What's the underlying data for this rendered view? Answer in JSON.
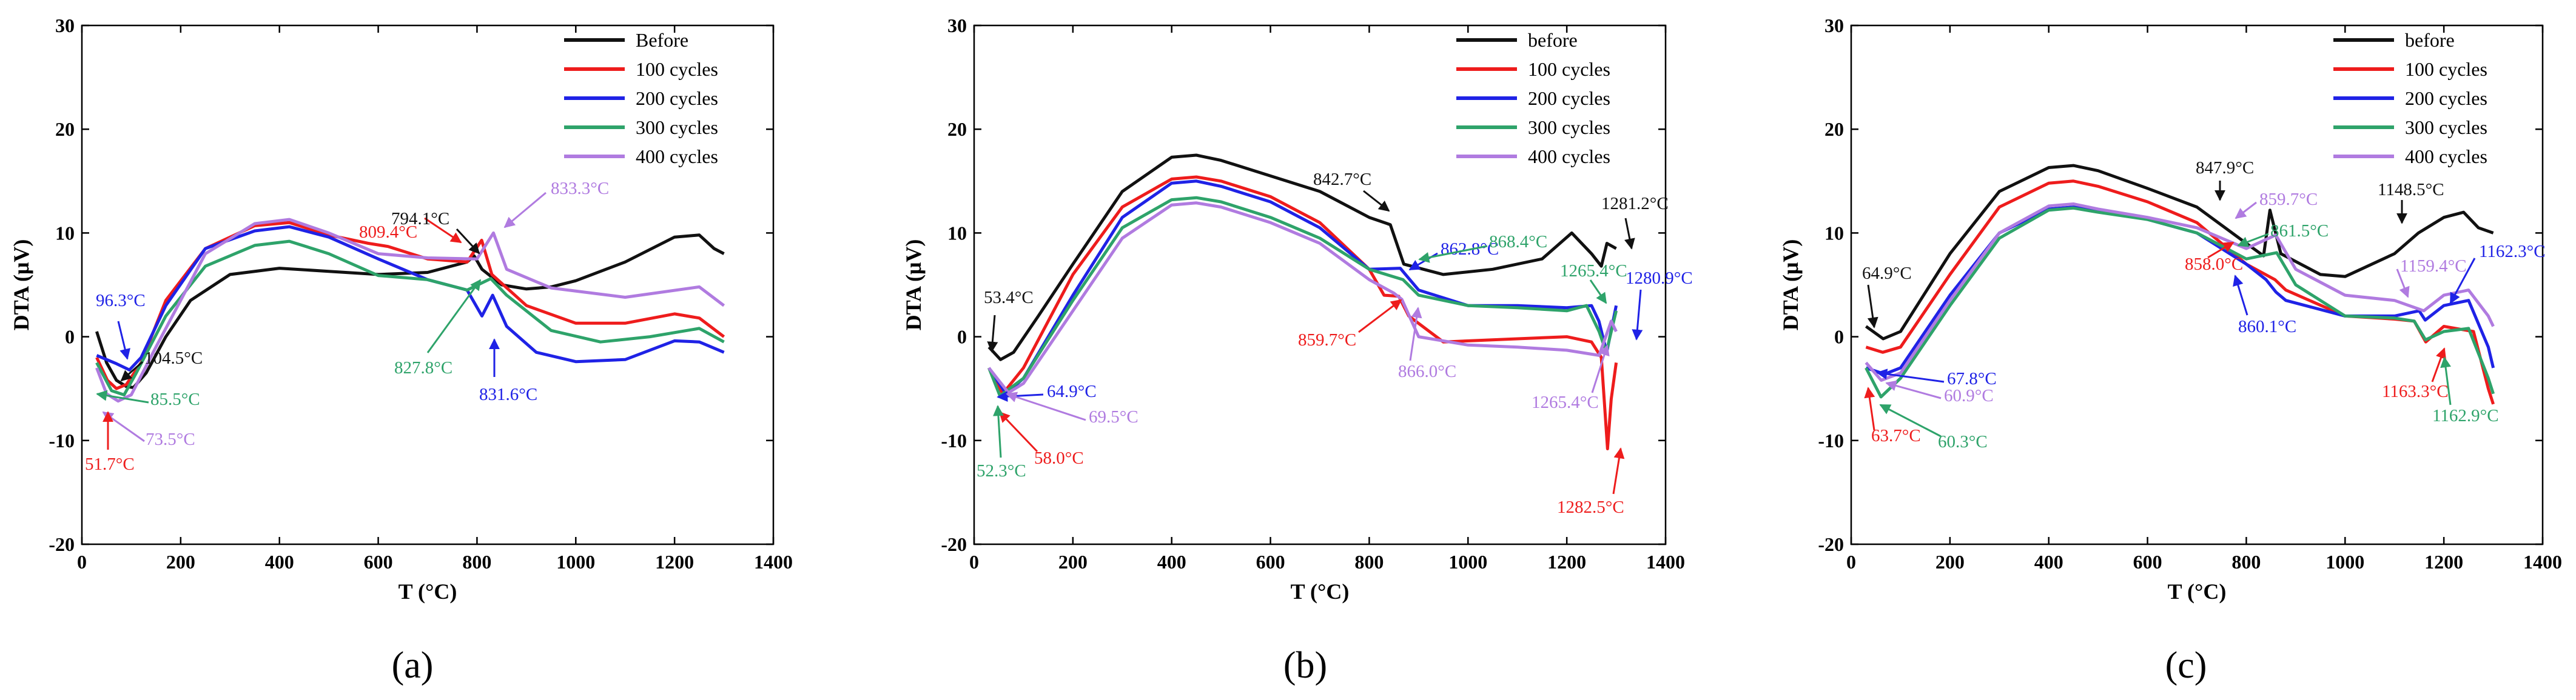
{
  "figure": {
    "panel_labels": [
      "(a)",
      "(b)",
      "(c)"
    ]
  },
  "colors": {
    "black": "#111111",
    "red": "#ee1c1c",
    "blue": "#1f22e6",
    "green": "#2ea36a",
    "purple": "#b07be0"
  },
  "chart_data": [
    {
      "type": "line",
      "title": "",
      "panel": "(a)",
      "xlabel": "T (°C)",
      "ylabel": "DTA (μV)",
      "xlim": [
        0,
        1400
      ],
      "ylim": [
        -20,
        30
      ],
      "xticks": [
        0,
        200,
        400,
        600,
        800,
        1000,
        1200,
        1400
      ],
      "yticks": [
        -20,
        -10,
        0,
        10,
        20,
        30
      ],
      "legend": "top-right",
      "series": [
        {
          "name": "Before",
          "color": "black",
          "x": [
            30,
            50,
            70,
            90,
            104.5,
            130,
            170,
            220,
            300,
            400,
            500,
            600,
            700,
            780,
            794.1,
            810,
            850,
            900,
            950,
            1000,
            1100,
            1200,
            1250,
            1280,
            1300
          ],
          "y": [
            0.5,
            -2.5,
            -4.2,
            -4.8,
            -4.9,
            -3.5,
            0,
            3.5,
            6,
            6.6,
            6.3,
            6,
            6.2,
            7.2,
            7.8,
            6.5,
            5,
            4.6,
            4.8,
            5.4,
            7.2,
            9.6,
            9.8,
            8.5,
            8
          ]
        },
        {
          "name": "100 cycles",
          "color": "red",
          "x": [
            30,
            51.7,
            70,
            90,
            120,
            170,
            250,
            350,
            420,
            500,
            580,
            620,
            700,
            780,
            809.4,
            830,
            900,
            1000,
            1100,
            1200,
            1250,
            1300
          ],
          "y": [
            -2,
            -4.2,
            -5,
            -4.6,
            -2.5,
            3.5,
            8.5,
            10.7,
            11,
            9.8,
            9,
            8.7,
            7.5,
            7.2,
            9.3,
            6,
            3,
            1.3,
            1.3,
            2.2,
            1.8,
            0
          ]
        },
        {
          "name": "200 cycles",
          "color": "blue",
          "x": [
            30,
            70,
            96.3,
            120,
            170,
            250,
            350,
            420,
            500,
            600,
            700,
            780,
            810,
            831.6,
            860,
            920,
            1000,
            1100,
            1200,
            1250,
            1300
          ],
          "y": [
            -1.8,
            -2.6,
            -3.2,
            -2,
            3,
            8.5,
            10.2,
            10.6,
            9.6,
            7.5,
            5.5,
            4.5,
            2,
            4,
            1,
            -1.5,
            -2.4,
            -2.2,
            -0.4,
            -0.5,
            -1.5
          ]
        },
        {
          "name": "300 cycles",
          "color": "green",
          "x": [
            30,
            60,
            85.5,
            110,
            170,
            250,
            350,
            420,
            500,
            600,
            700,
            780,
            827.8,
            860,
            950,
            1050,
            1150,
            1250,
            1300
          ],
          "y": [
            -2.5,
            -5.2,
            -5.6,
            -3.5,
            2,
            6.8,
            8.8,
            9.2,
            8,
            5.9,
            5.5,
            4.5,
            5.6,
            4,
            0.6,
            -0.5,
            0,
            0.8,
            -0.5
          ]
        },
        {
          "name": "400 cycles",
          "color": "purple",
          "x": [
            30,
            50,
            73.5,
            100,
            150,
            250,
            350,
            420,
            500,
            600,
            700,
            800,
            833.3,
            860,
            950,
            1100,
            1250,
            1300
          ],
          "y": [
            -3,
            -5.5,
            -6.2,
            -5.6,
            -1,
            8,
            10.9,
            11.3,
            10,
            8,
            7.6,
            7.5,
            10,
            6.5,
            4.7,
            3.8,
            4.8,
            3
          ]
        }
      ],
      "annotations": [
        {
          "text": "96.3°C",
          "color": "blue",
          "x": 96.3
        },
        {
          "text": "104.5°C",
          "color": "black",
          "x": 104.5
        },
        {
          "text": "85.5°C",
          "color": "green",
          "x": 85.5
        },
        {
          "text": "73.5°C",
          "color": "purple",
          "x": 73.5
        },
        {
          "text": "51.7°C",
          "color": "red",
          "x": 51.7
        },
        {
          "text": "809.4°C",
          "color": "red",
          "x": 809.4
        },
        {
          "text": "833.3°C",
          "color": "purple",
          "x": 833.3
        },
        {
          "text": "794.1°C",
          "color": "black",
          "x": 794.1
        },
        {
          "text": "827.8°C",
          "color": "green",
          "x": 827.8
        },
        {
          "text": "831.6°C",
          "color": "blue",
          "x": 831.6
        }
      ]
    },
    {
      "type": "line",
      "title": "",
      "panel": "(b)",
      "xlabel": "T (°C)",
      "ylabel": "DTA (μV)",
      "xlim": [
        0,
        1400
      ],
      "ylim": [
        -20,
        30
      ],
      "xticks": [
        0,
        200,
        400,
        600,
        800,
        1000,
        1200,
        1400
      ],
      "yticks": [
        -20,
        -10,
        0,
        10,
        20,
        30
      ],
      "legend": "top-right",
      "series": [
        {
          "name": "before",
          "color": "black",
          "x": [
            30,
            53.4,
            80,
            130,
            200,
            300,
            400,
            450,
            500,
            600,
            700,
            800,
            842.7,
            870,
            950,
            1050,
            1150,
            1210,
            1250,
            1270,
            1281.2,
            1300
          ],
          "y": [
            -1,
            -2.2,
            -1.5,
            2,
            7,
            14,
            17.3,
            17.5,
            17,
            15.5,
            14,
            11.5,
            10.8,
            7,
            6,
            6.5,
            7.5,
            10,
            8,
            6.8,
            9,
            8.5
          ]
        },
        {
          "name": "100 cycles",
          "color": "red",
          "x": [
            30,
            58,
            100,
            200,
            300,
            400,
            450,
            500,
            600,
            700,
            800,
            830,
            859.7,
            880,
            950,
            1100,
            1200,
            1250,
            1270,
            1282.5,
            1290,
            1300
          ],
          "y": [
            -3,
            -5.5,
            -3,
            6,
            12.5,
            15.2,
            15.4,
            15,
            13.5,
            11,
            6.5,
            4,
            3.9,
            2,
            -0.5,
            -0.2,
            0,
            -0.5,
            -2,
            -10.8,
            -6,
            -2.5
          ]
        },
        {
          "name": "200 cycles",
          "color": "blue",
          "x": [
            30,
            64.9,
            100,
            200,
            300,
            400,
            450,
            500,
            600,
            700,
            800,
            862.8,
            900,
            1000,
            1100,
            1200,
            1250,
            1265,
            1280.9,
            1300
          ],
          "y": [
            -3,
            -5.5,
            -4,
            4,
            11.5,
            14.8,
            15,
            14.5,
            13,
            10.5,
            6.5,
            6.6,
            4.5,
            3,
            3,
            2.8,
            3,
            1.5,
            -1.5,
            3
          ]
        },
        {
          "name": "300 cycles",
          "color": "green",
          "x": [
            30,
            52.3,
            100,
            200,
            300,
            400,
            450,
            500,
            600,
            700,
            800,
            868.4,
            900,
            1000,
            1100,
            1200,
            1240,
            1265.4,
            1280,
            1300
          ],
          "y": [
            -3,
            -5.7,
            -4,
            3.5,
            10.5,
            13.2,
            13.4,
            13,
            11.5,
            9.5,
            6.5,
            5.5,
            4,
            3,
            2.8,
            2.5,
            3,
            0.5,
            -1.5,
            2.5
          ]
        },
        {
          "name": "400 cycles",
          "color": "purple",
          "x": [
            30,
            69.5,
            100,
            200,
            300,
            400,
            450,
            500,
            600,
            700,
            800,
            850,
            866,
            900,
            1000,
            1100,
            1200,
            1265.4,
            1290,
            1300
          ],
          "y": [
            -3,
            -5.4,
            -4.5,
            2.5,
            9.5,
            12.7,
            12.9,
            12.5,
            11,
            9,
            5.5,
            4.2,
            3.6,
            0,
            -0.8,
            -1,
            -1.3,
            -1.8,
            1.5,
            0.5
          ]
        }
      ],
      "annotations": [
        {
          "text": "53.4°C",
          "color": "black",
          "x": 53.4
        },
        {
          "text": "64.9°C",
          "color": "blue",
          "x": 64.9
        },
        {
          "text": "69.5°C",
          "color": "purple",
          "x": 69.5
        },
        {
          "text": "58.0°C",
          "color": "red",
          "x": 58.0
        },
        {
          "text": "52.3°C",
          "color": "green",
          "x": 52.3
        },
        {
          "text": "842.7°C",
          "color": "black",
          "x": 842.7
        },
        {
          "text": "862.8°C",
          "color": "blue",
          "x": 862.8
        },
        {
          "text": "868.4°C",
          "color": "green",
          "x": 868.4
        },
        {
          "text": "859.7°C",
          "color": "red",
          "x": 859.7
        },
        {
          "text": "866.0°C",
          "color": "purple",
          "x": 866.0
        },
        {
          "text": "1281.2°C",
          "color": "black",
          "x": 1281.2
        },
        {
          "text": "1265.4°C",
          "color": "green",
          "x": 1265.4
        },
        {
          "text": "1280.9°C",
          "color": "blue",
          "x": 1280.9
        },
        {
          "text": "1265.4°C",
          "color": "purple",
          "x": 1265.4
        },
        {
          "text": "1282.5°C",
          "color": "red",
          "x": 1282.5
        }
      ]
    },
    {
      "type": "line",
      "title": "",
      "panel": "(c)",
      "xlabel": "T (°C)",
      "ylabel": "DTA (μV)",
      "xlim": [
        0,
        1400
      ],
      "ylim": [
        -20,
        30
      ],
      "xticks": [
        0,
        200,
        400,
        600,
        800,
        1000,
        1200,
        1400
      ],
      "yticks": [
        -20,
        -10,
        0,
        10,
        20,
        30
      ],
      "legend": "top-right",
      "series": [
        {
          "name": "before",
          "color": "black",
          "x": [
            30,
            64.9,
            100,
            200,
            300,
            400,
            450,
            500,
            600,
            700,
            800,
            835,
            847.9,
            870,
            950,
            1000,
            1100,
            1148.5,
            1200,
            1240,
            1270,
            1300
          ],
          "y": [
            1,
            -0.2,
            0.5,
            8,
            14,
            16.3,
            16.5,
            16,
            14.3,
            12.5,
            9,
            7.8,
            12.2,
            8,
            6,
            5.8,
            8,
            10,
            11.5,
            12,
            10.5,
            10
          ]
        },
        {
          "name": "100 cycles",
          "color": "red",
          "x": [
            30,
            63.7,
            100,
            200,
            300,
            400,
            450,
            500,
            600,
            700,
            800,
            858,
            880,
            1000,
            1100,
            1140,
            1163.3,
            1200,
            1260,
            1290,
            1300
          ],
          "y": [
            -1,
            -1.5,
            -1,
            6,
            12.5,
            14.8,
            15,
            14.5,
            13,
            11,
            7,
            5.5,
            4.5,
            2,
            1.7,
            1.5,
            -0.5,
            1,
            0.5,
            -5,
            -6.5
          ]
        },
        {
          "name": "200 cycles",
          "color": "blue",
          "x": [
            30,
            67.8,
            100,
            200,
            300,
            400,
            450,
            500,
            600,
            700,
            800,
            840,
            860.1,
            880,
            1000,
            1100,
            1150,
            1162.3,
            1200,
            1250,
            1290,
            1300
          ],
          "y": [
            -3,
            -3.6,
            -3,
            4,
            10,
            12.3,
            12.5,
            12.2,
            11.3,
            10,
            7,
            5.5,
            4.3,
            3.5,
            2,
            2,
            2.5,
            1.6,
            3,
            3.5,
            -1,
            -3
          ]
        },
        {
          "name": "300 cycles",
          "color": "green",
          "x": [
            30,
            60.3,
            100,
            200,
            300,
            400,
            450,
            500,
            600,
            700,
            800,
            861.5,
            900,
            1000,
            1100,
            1140,
            1162.9,
            1200,
            1250,
            1290,
            1300
          ],
          "y": [
            -3,
            -5.8,
            -4,
            3,
            9.5,
            12.2,
            12.4,
            12,
            11.3,
            10,
            7.5,
            8.1,
            5,
            2,
            1.8,
            1.5,
            -0.3,
            0.5,
            0.8,
            -4,
            -5.5
          ]
        },
        {
          "name": "400 cycles",
          "color": "purple",
          "x": [
            30,
            60.9,
            100,
            200,
            300,
            400,
            450,
            500,
            600,
            700,
            800,
            859.7,
            900,
            1000,
            1100,
            1159.4,
            1200,
            1250,
            1290,
            1300
          ],
          "y": [
            -2.5,
            -4.2,
            -3.5,
            3.5,
            10,
            12.6,
            12.8,
            12.3,
            11.5,
            10.5,
            8.5,
            9.8,
            6.5,
            4,
            3.5,
            2.5,
            4,
            4.5,
            2,
            1
          ]
        }
      ],
      "annotations": [
        {
          "text": "64.9°C",
          "color": "black",
          "x": 64.9
        },
        {
          "text": "67.8°C",
          "color": "blue",
          "x": 67.8
        },
        {
          "text": "60.9°C",
          "color": "purple",
          "x": 60.9
        },
        {
          "text": "63.7°C",
          "color": "red",
          "x": 63.7
        },
        {
          "text": "60.3°C",
          "color": "green",
          "x": 60.3
        },
        {
          "text": "847.9°C",
          "color": "black",
          "x": 847.9
        },
        {
          "text": "859.7°C",
          "color": "purple",
          "x": 859.7
        },
        {
          "text": "861.5°C",
          "color": "green",
          "x": 861.5
        },
        {
          "text": "858.0°C",
          "color": "red",
          "x": 858.0
        },
        {
          "text": "860.1°C",
          "color": "blue",
          "x": 860.1
        },
        {
          "text": "1148.5°C",
          "color": "black",
          "x": 1148.5
        },
        {
          "text": "1159.4°C",
          "color": "purple",
          "x": 1159.4
        },
        {
          "text": "1162.3°C",
          "color": "blue",
          "x": 1162.3
        },
        {
          "text": "1163.3°C",
          "color": "red",
          "x": 1163.3
        },
        {
          "text": "1162.9°C",
          "color": "green",
          "x": 1162.9
        }
      ]
    }
  ]
}
